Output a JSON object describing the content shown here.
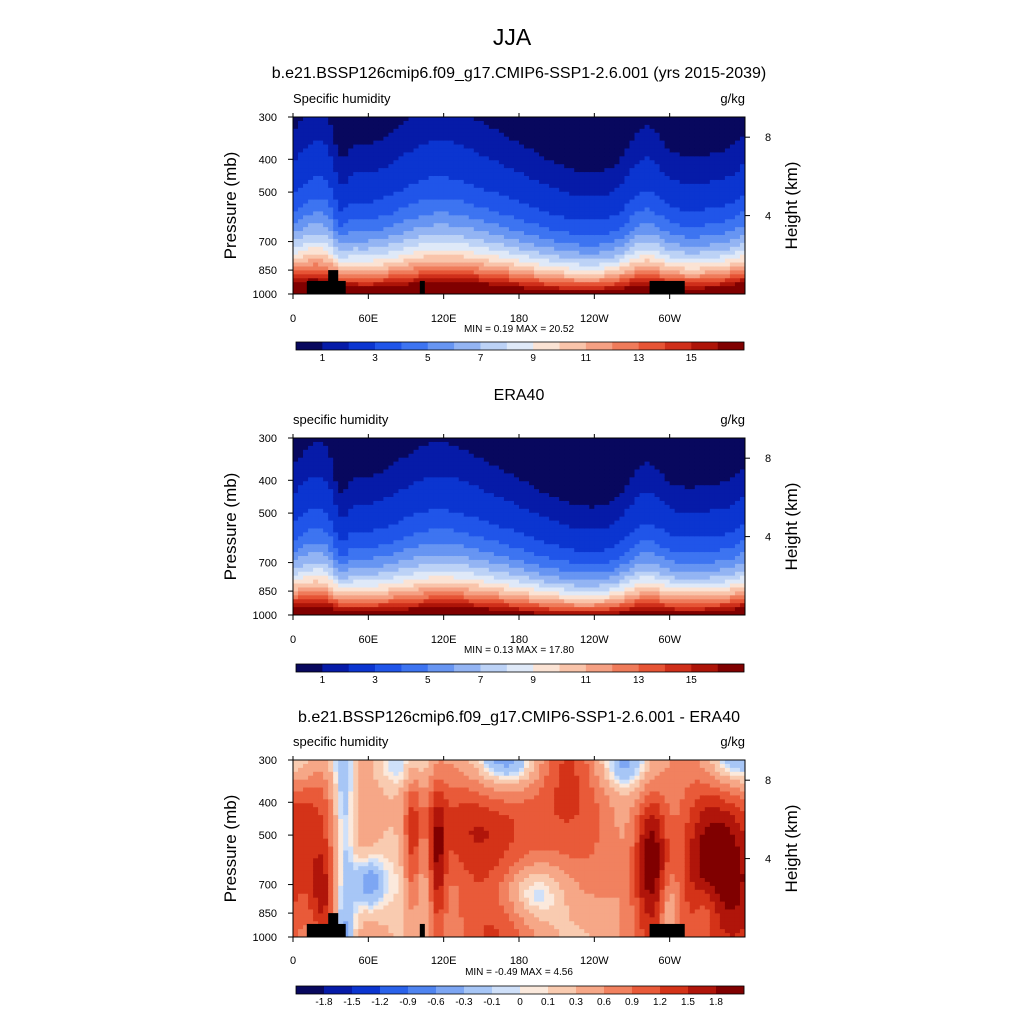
{
  "figure": {
    "title": "JJA"
  },
  "chart_data": [
    {
      "type": "heatmap",
      "title": "b.e21.BSSP126cmip6.f09_g17.CMIP6-SSP1-2.6.001 (yrs 2015-2039)",
      "left_label": "Specific humidity",
      "right_label": "g/kg",
      "ylabel": "Pressure (mb)",
      "y2label": "Height (km)",
      "x_ticks": [
        "0",
        "60E",
        "120E",
        "180",
        "120W",
        "60W"
      ],
      "x_tick_values": [
        0,
        60,
        120,
        180,
        240,
        300
      ],
      "xlim": [
        0,
        360
      ],
      "y_ticks": [
        "300",
        "400",
        "500",
        "700",
        "850",
        "1000"
      ],
      "y_tick_values": [
        300,
        400,
        500,
        700,
        850,
        1000
      ],
      "ylim": [
        1000,
        300
      ],
      "y2_ticks": [
        "8",
        "4"
      ],
      "y2_tick_values": [
        8,
        4
      ],
      "stats": "MIN =   0.19  MAX =  20.52",
      "colorbar_levels": [
        0.5,
        1,
        2,
        3,
        4,
        5,
        6,
        7,
        8,
        9,
        10,
        11,
        12,
        13,
        14,
        15,
        16
      ],
      "colorbar_labels": [
        "1",
        "3",
        "5",
        "7",
        "9",
        "11",
        "13",
        "15"
      ],
      "colorbar_label_indices": [
        1,
        3,
        5,
        7,
        9,
        11,
        13,
        15
      ],
      "masked_terrain": true
    },
    {
      "type": "heatmap",
      "title": "ERA40",
      "left_label": "specific humidity",
      "right_label": "g/kg",
      "ylabel": "Pressure (mb)",
      "y2label": "Height (km)",
      "x_ticks": [
        "0",
        "60E",
        "120E",
        "180",
        "120W",
        "60W"
      ],
      "x_tick_values": [
        0,
        60,
        120,
        180,
        240,
        300
      ],
      "xlim": [
        0,
        360
      ],
      "y_ticks": [
        "300",
        "400",
        "500",
        "700",
        "850",
        "1000"
      ],
      "y_tick_values": [
        300,
        400,
        500,
        700,
        850,
        1000
      ],
      "ylim": [
        1000,
        300
      ],
      "y2_ticks": [
        "8",
        "4"
      ],
      "y2_tick_values": [
        8,
        4
      ],
      "stats": "MIN =   0.13  MAX =  17.80",
      "colorbar_levels": [
        0.5,
        1,
        2,
        3,
        4,
        5,
        6,
        7,
        8,
        9,
        10,
        11,
        12,
        13,
        14,
        15,
        16
      ],
      "colorbar_labels": [
        "1",
        "3",
        "5",
        "7",
        "9",
        "11",
        "13",
        "15"
      ],
      "colorbar_label_indices": [
        1,
        3,
        5,
        7,
        9,
        11,
        13,
        15
      ],
      "masked_terrain": false
    },
    {
      "type": "heatmap",
      "title": "b.e21.BSSP126cmip6.f09_g17.CMIP6-SSP1-2.6.001 - ERA40",
      "left_label": "specific humidity",
      "right_label": "g/kg",
      "ylabel": "Pressure (mb)",
      "y2label": "Height (km)",
      "x_ticks": [
        "0",
        "60E",
        "120E",
        "180",
        "120W",
        "60W"
      ],
      "x_tick_values": [
        0,
        60,
        120,
        180,
        240,
        300
      ],
      "xlim": [
        0,
        360
      ],
      "y_ticks": [
        "300",
        "400",
        "500",
        "700",
        "850",
        "1000"
      ],
      "y_tick_values": [
        300,
        400,
        500,
        700,
        850,
        1000
      ],
      "ylim": [
        1000,
        300
      ],
      "y2_ticks": [
        "8",
        "4"
      ],
      "y2_tick_values": [
        8,
        4
      ],
      "stats": "MIN =  -0.49  MAX =   4.56",
      "colorbar_levels": [
        -1.8,
        -1.5,
        -1.2,
        -0.9,
        -0.6,
        -0.3,
        -0.1,
        0,
        0.1,
        0.3,
        0.6,
        0.9,
        1.2,
        1.5,
        1.8
      ],
      "colorbar_labels": [
        "-1.8",
        "-1.5",
        "-1.2",
        "-0.9",
        "-0.6",
        "-0.3",
        "-0.1",
        "0",
        "0.1",
        "0.3",
        "0.6",
        "0.9",
        "1.2",
        "1.5",
        "1.8"
      ],
      "colorbar_label_indices": [
        1,
        2,
        3,
        4,
        5,
        6,
        7,
        8,
        9,
        10,
        11,
        12,
        13,
        14,
        15
      ],
      "masked_terrain": true
    }
  ]
}
